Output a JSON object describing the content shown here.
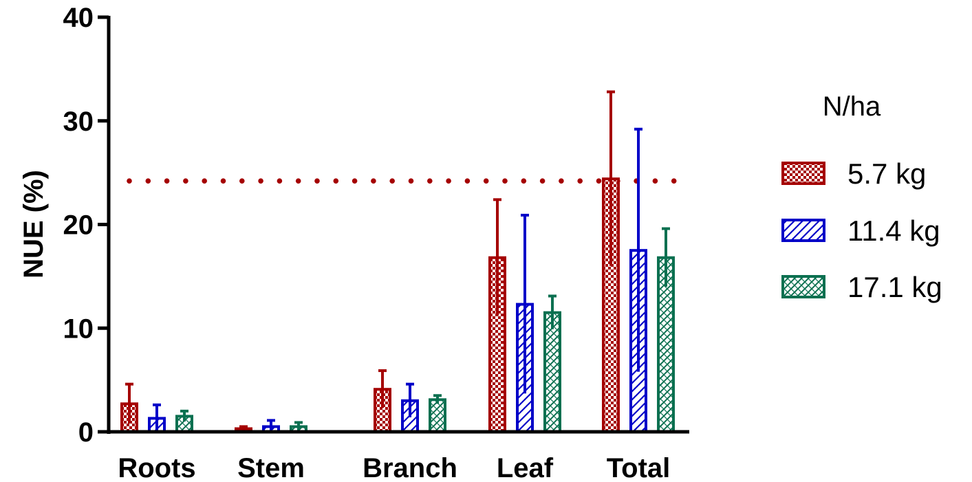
{
  "chart_data": {
    "type": "bar",
    "title": "",
    "xlabel": "",
    "ylabel": "NUE (%)",
    "ylim": [
      0,
      40
    ],
    "yticks": [
      0,
      10,
      20,
      30,
      40
    ],
    "categories": [
      "Roots",
      "Stem",
      "Branch",
      "Leaf",
      "Total"
    ],
    "legend_title": "N/ha",
    "legend_position": "right",
    "grid": false,
    "reference_line": {
      "y": 24.2,
      "style": "dotted",
      "color": "#a50000"
    },
    "series": [
      {
        "name": "5.7 kg",
        "color": "#a50000",
        "pattern": "checker",
        "values": [
          2.7,
          0.3,
          4.1,
          16.8,
          24.4
        ],
        "errors": [
          1.9,
          0.2,
          1.8,
          5.6,
          8.4
        ]
      },
      {
        "name": "11.4 kg",
        "color": "#0000c8",
        "pattern": "diagonal",
        "values": [
          1.3,
          0.5,
          3.0,
          12.3,
          17.5
        ],
        "errors": [
          1.3,
          0.6,
          1.6,
          8.6,
          11.7
        ]
      },
      {
        "name": "17.1 kg",
        "color": "#0a7050",
        "pattern": "crosshatch",
        "values": [
          1.5,
          0.5,
          3.1,
          11.5,
          16.8
        ],
        "errors": [
          0.5,
          0.4,
          0.4,
          1.6,
          2.8
        ]
      }
    ]
  }
}
